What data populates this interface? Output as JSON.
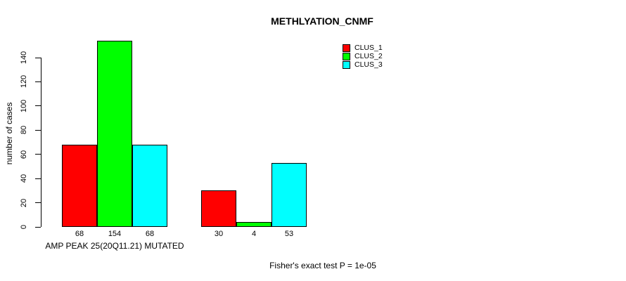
{
  "title": "METHLYATION_CNMF",
  "y_axis": {
    "label": "number of cases",
    "ticks": [
      "0",
      "20",
      "40",
      "60",
      "80",
      "100",
      "120",
      "140"
    ]
  },
  "x_axis": {
    "label": "AMP PEAK 25(20Q11.21) MUTATED"
  },
  "footer": "Fisher's exact test P = 1e-05",
  "legend": {
    "items": [
      {
        "label": "CLUS_1",
        "color": "#ff0000"
      },
      {
        "label": "CLUS_2",
        "color": "#00ff00"
      },
      {
        "label": "CLUS_3",
        "color": "#00ffff"
      }
    ]
  },
  "chart_data": {
    "type": "bar",
    "title": "METHLYATION_CNMF",
    "xlabel": "AMP PEAK 25(20Q11.21) MUTATED",
    "ylabel": "number of cases",
    "ylim": [
      0,
      154
    ],
    "yticks": [
      0,
      20,
      40,
      60,
      80,
      100,
      120,
      140
    ],
    "grid": false,
    "legend_position": "top-right",
    "annotation": "Fisher's exact test P = 1e-05",
    "categories": [
      "AMP PEAK 25(20Q11.21) MUTATED",
      ""
    ],
    "series": [
      {
        "name": "CLUS_1",
        "color": "#ff0000",
        "values": [
          68,
          30
        ]
      },
      {
        "name": "CLUS_2",
        "color": "#00ff00",
        "values": [
          154,
          4
        ]
      },
      {
        "name": "CLUS_3",
        "color": "#00ffff",
        "values": [
          68,
          53
        ]
      }
    ],
    "bar_labels": [
      [
        68,
        154,
        68
      ],
      [
        30,
        4,
        53
      ]
    ]
  }
}
